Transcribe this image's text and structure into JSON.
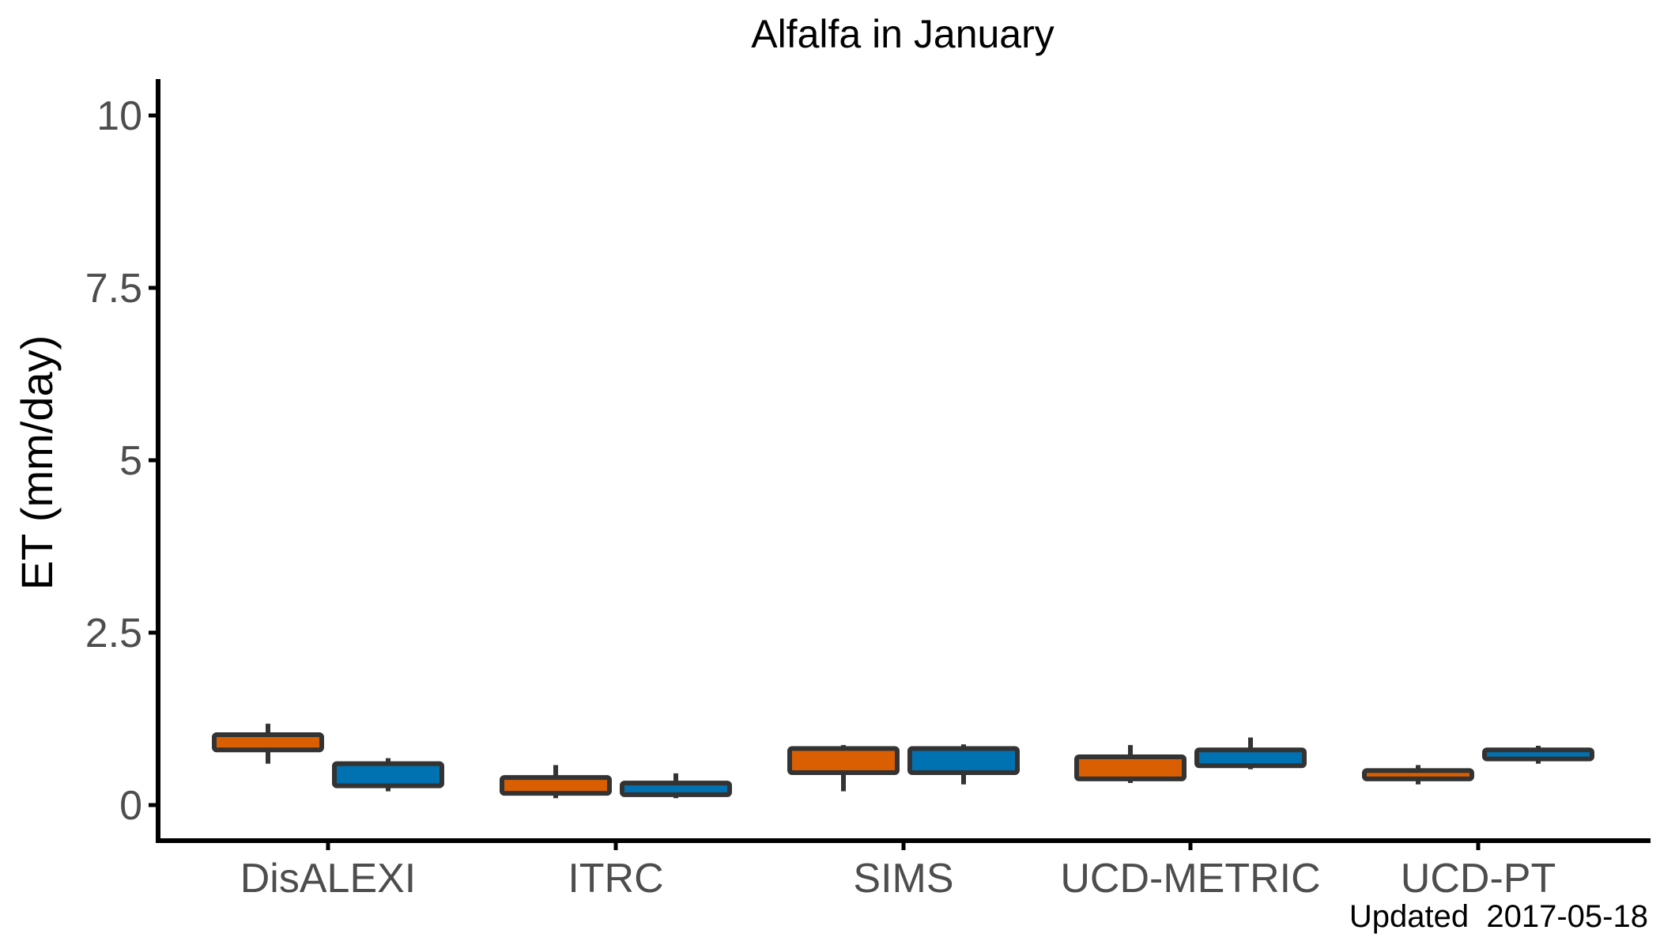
{
  "chart_data": {
    "type": "boxplot",
    "title": "Alfalfa in January",
    "xlabel": "",
    "ylabel": "ET (mm/day)",
    "categories": [
      "DisALEXI",
      "ITRC",
      "SIMS",
      "UCD-METRIC",
      "UCD-PT"
    ],
    "yticks": [
      "0",
      "2.5",
      "5",
      "7.5",
      "10"
    ],
    "ytick_values": [
      0,
      2.5,
      5,
      7.5,
      10
    ],
    "ylim": [
      -0.5,
      10.5
    ],
    "grid": false,
    "legend": "none",
    "caption": "Updated  2017-05-18",
    "colors": {
      "axis": "#000000",
      "box_outline": "#333333",
      "orange": "#d95f02",
      "blue": "#0072b2",
      "dark": "#333333"
    },
    "series": [
      {
        "color_key": "orange",
        "boxes": [
          {
            "category": "DisALEXI",
            "whisker_low": 0.6,
            "q1": 0.8,
            "median": 0.9,
            "q3": 1.02,
            "whisker_high": 1.18
          },
          {
            "category": "ITRC",
            "whisker_low": 0.1,
            "q1": 0.17,
            "median": 0.3,
            "q3": 0.4,
            "whisker_high": 0.58
          },
          {
            "category": "SIMS",
            "whisker_low": 0.2,
            "q1": 0.47,
            "median": 0.72,
            "q3": 0.82,
            "whisker_high": 0.87
          },
          {
            "category": "UCD-METRIC",
            "whisker_low": 0.32,
            "q1": 0.38,
            "median": 0.6,
            "q3": 0.7,
            "whisker_high": 0.87
          },
          {
            "category": "UCD-PT",
            "whisker_low": 0.3,
            "q1": 0.38,
            "median": 0.45,
            "q3": 0.5,
            "whisker_high": 0.58
          }
        ]
      },
      {
        "color_key": "blue",
        "boxes": [
          {
            "category": "DisALEXI",
            "whisker_low": 0.2,
            "q1": 0.28,
            "median": 0.5,
            "q3": 0.6,
            "whisker_high": 0.68
          },
          {
            "category": "ITRC",
            "whisker_low": 0.1,
            "q1": 0.15,
            "median": 0.23,
            "q3": 0.32,
            "whisker_high": 0.46
          },
          {
            "category": "SIMS",
            "whisker_low": 0.3,
            "q1": 0.47,
            "median": 0.72,
            "q3": 0.82,
            "whisker_high": 0.88
          },
          {
            "category": "UCD-METRIC",
            "whisker_low": 0.52,
            "q1": 0.57,
            "median": 0.72,
            "q3": 0.8,
            "whisker_high": 0.98
          },
          {
            "category": "UCD-PT",
            "whisker_low": 0.6,
            "q1": 0.67,
            "median": 0.75,
            "q3": 0.8,
            "whisker_high": 0.86
          }
        ]
      }
    ]
  }
}
